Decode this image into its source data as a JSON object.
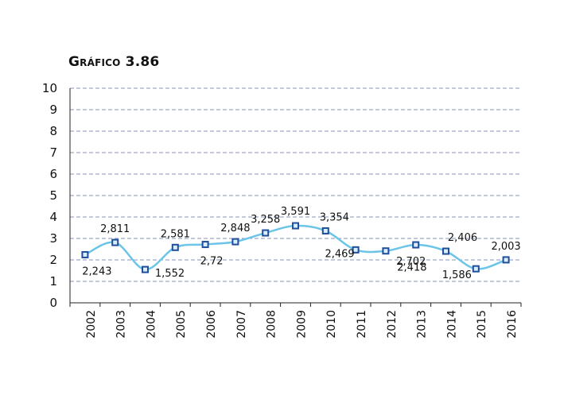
{
  "chart_data": {
    "type": "line",
    "title": "Gráfico 3.86",
    "xlabel": "",
    "ylabel": "",
    "categories": [
      "2002",
      "2003",
      "2004",
      "2005",
      "2006",
      "2007",
      "2008",
      "2009",
      "2010",
      "2011",
      "2012",
      "2013",
      "2014",
      "2015",
      "2016"
    ],
    "series": [
      {
        "values": [
          2.243,
          2.811,
          1.552,
          2.581,
          2.72,
          2.848,
          3.258,
          3.591,
          3.354,
          2.469,
          2.418,
          2.702,
          2.406,
          1.586,
          2.003
        ]
      }
    ],
    "labels": [
      "2,243",
      "2,811",
      "1,552",
      "2,581",
      "2,72",
      "2,848",
      "3,258",
      "3,591",
      "3,354",
      "2,469",
      "2,418",
      "2,702",
      "2,406",
      "1,586",
      "2,003"
    ],
    "ylim": [
      0,
      10
    ],
    "yticks": [
      "0",
      "1",
      "2",
      "3",
      "4",
      "5",
      "6",
      "7",
      "8",
      "9",
      "10"
    ],
    "grid": true,
    "colors": {
      "line": "#6cc5e8",
      "marker_fill": "#d9eef8",
      "marker_stroke": "#1f4e9c",
      "grid": "#8a93b5"
    }
  }
}
